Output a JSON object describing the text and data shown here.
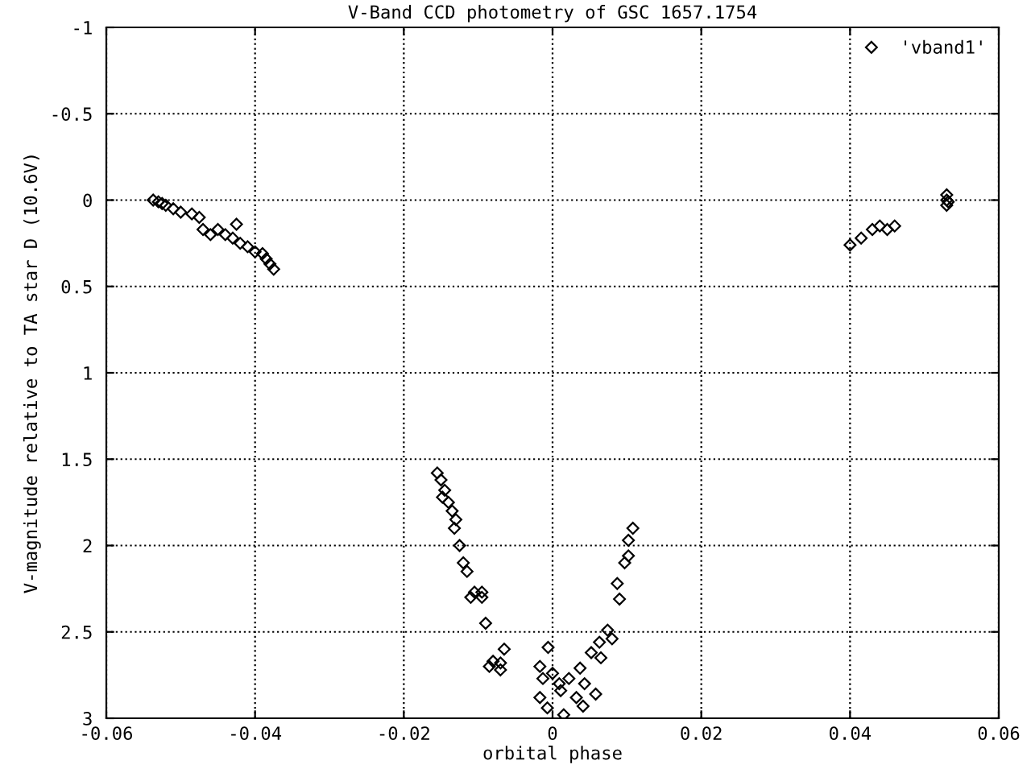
{
  "chart_data": {
    "type": "scatter",
    "title": "V-Band CCD photometry of GSC 1657.1754",
    "xlabel": "orbital phase",
    "ylabel": "V-magnitude relative to TA star D (10.6V)",
    "xlim": [
      -0.06,
      0.06
    ],
    "xticks": [
      -0.06,
      -0.04,
      -0.02,
      0,
      0.02,
      0.04,
      0.06
    ],
    "ylim": [
      3,
      -1
    ],
    "yticks": [
      -1,
      -0.5,
      0,
      0.5,
      1,
      1.5,
      2,
      2.5,
      3
    ],
    "grid": true,
    "legend": "top right",
    "marker": "diamond",
    "series": [
      {
        "name": "'vband1'",
        "color": "#000000",
        "x": [
          -0.0537,
          -0.053,
          -0.0525,
          -0.052,
          -0.051,
          -0.05,
          -0.0485,
          -0.0475,
          -0.047,
          -0.046,
          -0.045,
          -0.044,
          -0.043,
          -0.0425,
          -0.042,
          -0.041,
          -0.04,
          -0.039,
          -0.0385,
          -0.038,
          -0.0375,
          0.04,
          0.0415,
          0.043,
          0.044,
          0.045,
          0.046,
          0.053,
          0.053,
          0.053,
          0.0532,
          -0.0155,
          -0.015,
          -0.0145,
          -0.0148,
          -0.014,
          -0.0135,
          -0.013,
          -0.0132,
          -0.0125,
          -0.012,
          -0.0115,
          -0.0105,
          -0.0095,
          -0.011,
          -0.0095,
          -0.009,
          -0.008,
          -0.007,
          -0.0065,
          -0.0085,
          -0.007,
          -0.0006,
          -0.0017,
          0.0009,
          -0.0007,
          0.0015,
          -0.0017,
          0.0108,
          0.0102,
          0.0097,
          0.0087,
          0.009,
          0.0074,
          0.0063,
          0.0052,
          0.0037,
          0.0043,
          0.0032,
          0.0041,
          0.0022,
          0.0058,
          0.0065,
          0.008,
          0.0102,
          0.0,
          0.0011,
          -0.0013
        ],
        "values": [
          0.0,
          0.01,
          0.02,
          0.03,
          0.05,
          0.07,
          0.08,
          0.1,
          0.17,
          0.2,
          0.17,
          0.2,
          0.22,
          0.14,
          0.25,
          0.27,
          0.3,
          0.31,
          0.34,
          0.37,
          0.4,
          0.26,
          0.22,
          0.17,
          0.15,
          0.17,
          0.15,
          -0.03,
          0.0,
          0.03,
          0.01,
          1.58,
          1.62,
          1.68,
          1.72,
          1.75,
          1.8,
          1.85,
          1.9,
          2.0,
          2.1,
          2.15,
          2.27,
          2.27,
          2.3,
          2.3,
          2.45,
          2.67,
          2.68,
          2.6,
          2.7,
          2.72,
          2.59,
          2.7,
          2.8,
          2.94,
          2.98,
          2.88,
          1.9,
          1.97,
          2.1,
          2.22,
          2.31,
          2.49,
          2.56,
          2.62,
          2.71,
          2.8,
          2.88,
          2.93,
          2.77,
          2.86,
          2.65,
          2.54,
          2.06,
          2.74,
          2.84,
          2.77
        ]
      }
    ]
  }
}
